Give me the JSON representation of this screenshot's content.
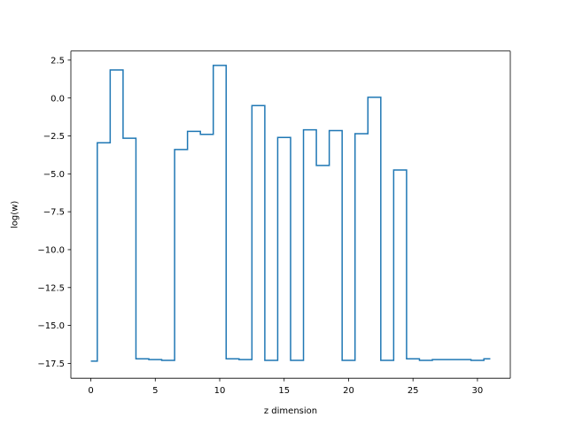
{
  "chart_data": {
    "type": "line",
    "drawstyle": "steps-mid",
    "title": "",
    "xlabel": "z dimension",
    "ylabel": "log(w)",
    "xlim": [
      -1.55,
      32.55
    ],
    "ylim": [
      -18.48,
      3.1
    ],
    "xticks": [
      0,
      5,
      10,
      15,
      20,
      25,
      30
    ],
    "xtick_labels": [
      "0",
      "5",
      "10",
      "15",
      "20",
      "25",
      "30"
    ],
    "yticks": [
      2.5,
      0.0,
      -2.5,
      -5.0,
      -7.5,
      -10.0,
      -12.5,
      -15.0,
      -17.5
    ],
    "ytick_labels": [
      "2.5",
      "0.0",
      "−2.5",
      "−5.0",
      "−7.5",
      "−10.0",
      "−12.5",
      "−15.0",
      "−17.5"
    ],
    "grid": false,
    "series": [
      {
        "color": "#1f77b4",
        "x": [
          0,
          1,
          2,
          3,
          4,
          5,
          6,
          7,
          8,
          9,
          10,
          11,
          12,
          13,
          14,
          15,
          16,
          17,
          18,
          19,
          20,
          21,
          22,
          23,
          24,
          25,
          26,
          27,
          28,
          29,
          30,
          31
        ],
        "y": [
          -17.35,
          -2.95,
          1.85,
          -2.65,
          -17.2,
          -17.25,
          -17.3,
          -3.4,
          -2.2,
          -2.4,
          2.15,
          -17.2,
          -17.25,
          -0.5,
          -17.3,
          -2.6,
          -17.3,
          -2.1,
          -4.45,
          -2.15,
          -17.3,
          -2.35,
          0.05,
          -17.3,
          -4.75,
          -17.2,
          -17.3,
          -17.25,
          -17.25,
          -17.25,
          -17.3,
          -17.2
        ]
      }
    ]
  }
}
